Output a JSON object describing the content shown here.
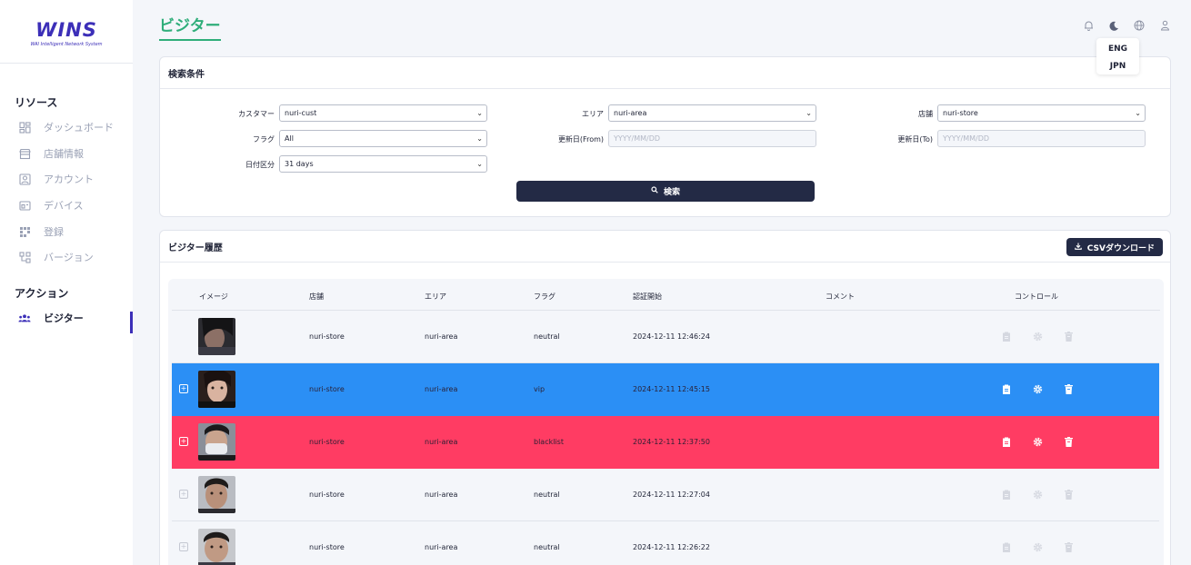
{
  "sidebar": {
    "logo": "WINS",
    "logo_sub": "WAI Intelligent Network System",
    "section_resources": "リソース",
    "items": [
      {
        "label": "ダッシュボード",
        "icon": "dashboard-icon"
      },
      {
        "label": "店舗情報",
        "icon": "store-icon"
      },
      {
        "label": "アカウント",
        "icon": "account-icon"
      },
      {
        "label": "デバイス",
        "icon": "device-icon"
      },
      {
        "label": "登録",
        "icon": "register-icon"
      },
      {
        "label": "バージョン",
        "icon": "version-icon"
      }
    ],
    "section_actions": "アクション",
    "action_item": {
      "label": "ビジター",
      "icon": "people-icon"
    }
  },
  "header": {
    "title": "ビジター",
    "icons": [
      "bell-icon",
      "moon-icon",
      "globe-icon",
      "user-icon"
    ],
    "languages": [
      "ENG",
      "JPN"
    ]
  },
  "search": {
    "title": "検索条件",
    "customer_label": "カスタマー",
    "customer_value": "nuri-cust",
    "area_label": "エリア",
    "area_value": "nuri-area",
    "store_label": "店舗",
    "store_value": "nuri-store",
    "flag_label": "フラグ",
    "flag_value": "All",
    "from_label": "更新日(From)",
    "from_placeholder": "YYYY/MM/DD",
    "to_label": "更新日(To)",
    "to_placeholder": "YYYY/MM/DD",
    "date_label": "日付区分",
    "date_value": "31 days",
    "button_label": "検索"
  },
  "history": {
    "title": "ビジター履歴",
    "csv_label": "CSVダウンロード",
    "columns": [
      "イメージ",
      "店舗",
      "エリア",
      "フラグ",
      "認証開始",
      "コメント",
      "コントロール"
    ],
    "rows": [
      {
        "store": "nuri-store",
        "area": "nuri-area",
        "flag": "neutral",
        "start": "2024-12-11 12:46:24",
        "comment": ""
      },
      {
        "store": "nuri-store",
        "area": "nuri-area",
        "flag": "vip",
        "start": "2024-12-11 12:45:15",
        "comment": ""
      },
      {
        "store": "nuri-store",
        "area": "nuri-area",
        "flag": "blacklist",
        "start": "2024-12-11 12:37:50",
        "comment": ""
      },
      {
        "store": "nuri-store",
        "area": "nuri-area",
        "flag": "neutral",
        "start": "2024-12-11 12:27:04",
        "comment": ""
      },
      {
        "store": "nuri-store",
        "area": "nuri-area",
        "flag": "neutral",
        "start": "2024-12-11 12:26:22",
        "comment": ""
      }
    ]
  },
  "colors": {
    "accent": "#2fae7a",
    "brand": "#3c2fb8",
    "vip": "#2b8ff5",
    "blacklist": "#ff3c63",
    "dark_button": "#232a45"
  }
}
